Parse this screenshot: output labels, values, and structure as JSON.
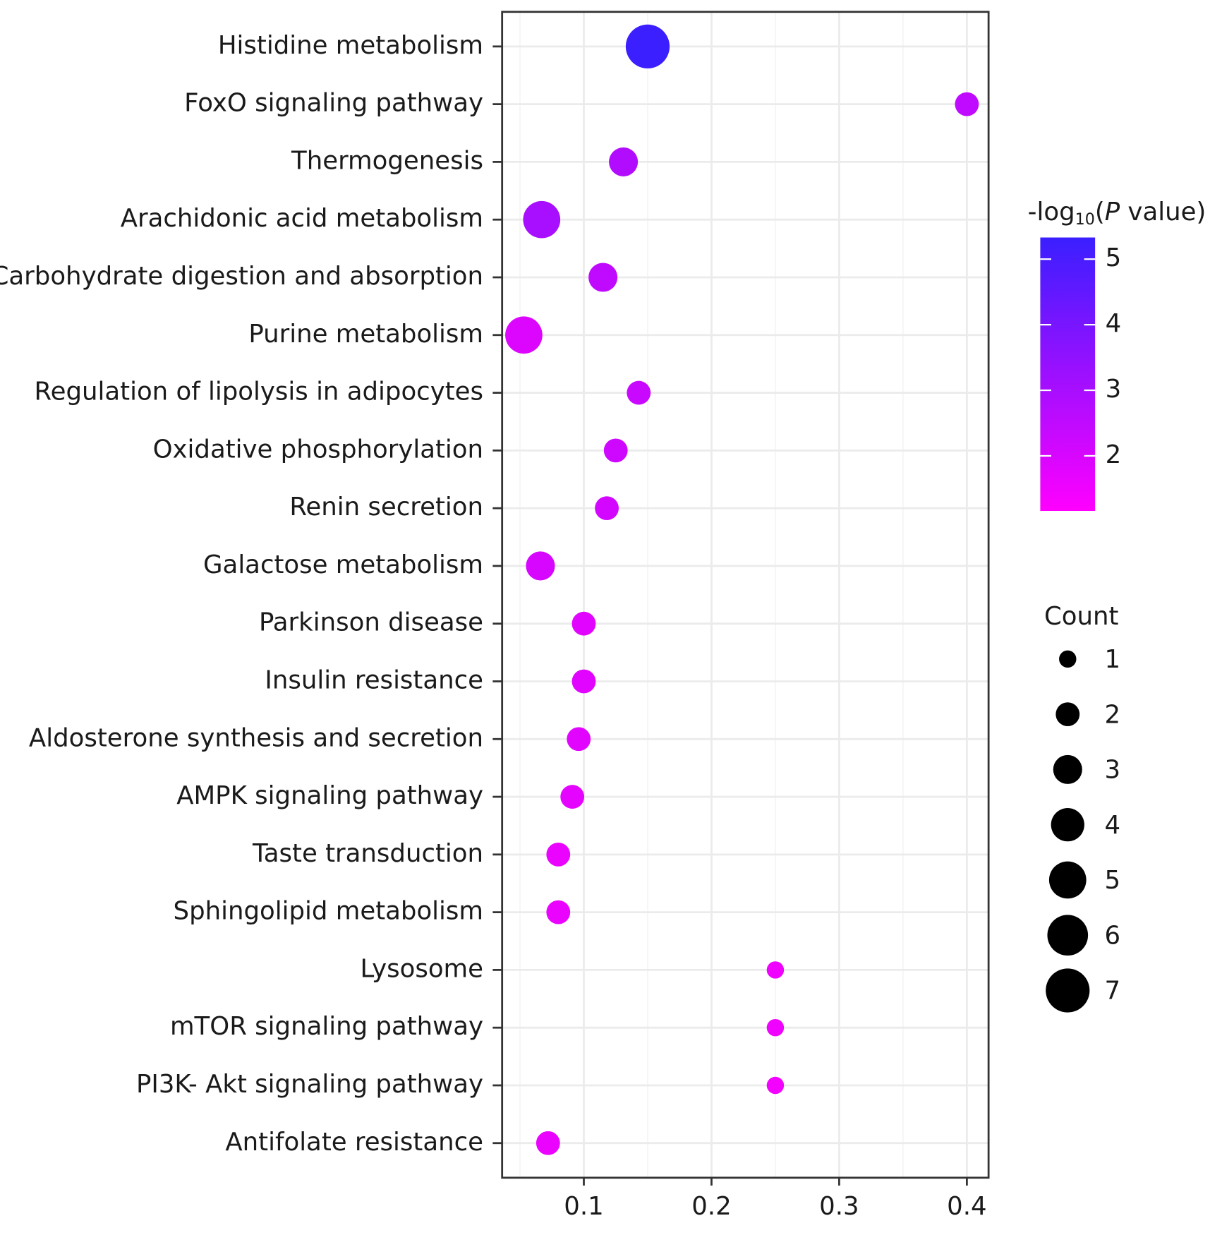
{
  "chart_data": {
    "type": "dot",
    "categories": [
      "Histidine metabolism",
      "FoxO signaling pathway",
      "Thermogenesis",
      "Arachidonic acid metabolism",
      "Carbohydrate digestion and absorption",
      "Purine metabolism",
      "Regulation of lipolysis in adipocytes",
      "Oxidative phosphorylation",
      "Renin secretion",
      "Galactose metabolism",
      "Parkinson disease",
      "Insulin resistance",
      "Aldosterone synthesis and secretion",
      "AMPK signaling pathway",
      "Taste transduction",
      "Sphingolipid metabolism",
      "Lysosome",
      "mTOR signaling pathway",
      "PI3K- Akt signaling pathway",
      "Antifolate resistance"
    ],
    "values": [
      0.15,
      0.4,
      0.131,
      0.067,
      0.115,
      0.053,
      0.143,
      0.125,
      0.118,
      0.066,
      0.1,
      0.1,
      0.096,
      0.091,
      0.08,
      0.08,
      0.25,
      0.25,
      0.25,
      0.072
    ],
    "counts": [
      7,
      2,
      3,
      5,
      3,
      5,
      2,
      2,
      2,
      3,
      2,
      2,
      2,
      2,
      2,
      2,
      1,
      1,
      1,
      2
    ],
    "pvalue_log": [
      5.3,
      2.5,
      2.8,
      3.0,
      2.5,
      1.9,
      2.3,
      2.2,
      2.1,
      2.0,
      1.8,
      1.8,
      1.8,
      1.7,
      1.6,
      1.6,
      1.5,
      1.5,
      1.4,
      1.6
    ],
    "xlim": [
      0.036,
      0.417
    ],
    "xticks": [
      0.1,
      0.2,
      0.3,
      0.4
    ],
    "xminor": [
      0.05,
      0.15,
      0.25,
      0.35
    ],
    "colorbar_title_parts": [
      "-log",
      "10",
      "(",
      "P",
      " value)"
    ],
    "colorbar_lim": [
      1.16,
      5.33
    ],
    "colorbar_ticks": [
      2,
      3,
      4,
      5
    ],
    "low_color": "#ff00ff",
    "high_color": "#3a1fff",
    "size_title": "Count",
    "size_legend": [
      1,
      2,
      3,
      4,
      5,
      6,
      7
    ],
    "grid": true
  }
}
